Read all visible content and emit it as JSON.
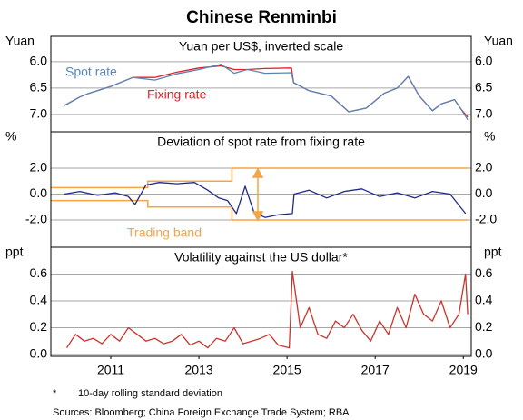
{
  "title": "Chinese Renminbi",
  "footnote_mark": "*",
  "footnote": "10-day rolling standard deviation",
  "source": "Sources: Bloomberg; China Foreign Exchange Trade System; RBA",
  "chart_data": [
    {
      "type": "line",
      "title": "Yuan per US$, inverted scale",
      "y_label": "Yuan",
      "inverted": true,
      "grid": true,
      "xlim": [
        2010.14,
        2019.68
      ],
      "ylim": [
        5.52,
        7.33
      ],
      "yticks": [
        {
          "value": 6.0,
          "label": "6.0"
        },
        {
          "value": 6.5,
          "label": "6.5"
        },
        {
          "value": 7.0,
          "label": "7.0"
        }
      ],
      "x": [
        2010.45,
        2010.8,
        2011.0,
        2011.5,
        2012.0,
        2012.5,
        2013.0,
        2013.5,
        2014.0,
        2014.3,
        2014.6,
        2015.0,
        2015.6,
        2015.65,
        2016.0,
        2016.5,
        2016.9,
        2017.3,
        2017.7,
        2018.0,
        2018.25,
        2018.5,
        2018.8,
        2019.0,
        2019.3,
        2019.45,
        2019.6
      ],
      "series": [
        {
          "name": "Fixing rate",
          "color": "#e32028",
          "values": [
            6.83,
            6.67,
            6.6,
            6.47,
            6.3,
            6.3,
            6.2,
            6.12,
            6.08,
            6.15,
            6.15,
            6.13,
            6.12,
            6.4,
            6.55,
            6.65,
            6.95,
            6.88,
            6.6,
            6.5,
            6.28,
            6.65,
            6.93,
            6.8,
            6.72,
            6.9,
            7.05
          ]
        },
        {
          "name": "Spot rate",
          "color": "#5687b8",
          "values": [
            6.83,
            6.67,
            6.6,
            6.47,
            6.3,
            6.35,
            6.23,
            6.15,
            6.05,
            6.22,
            6.15,
            6.22,
            6.21,
            6.4,
            6.55,
            6.65,
            6.95,
            6.88,
            6.6,
            6.5,
            6.28,
            6.65,
            6.93,
            6.8,
            6.72,
            6.9,
            7.1
          ]
        }
      ]
    },
    {
      "type": "line",
      "title": "Deviation of spot rate from fixing rate",
      "y_label": "%",
      "grid": true,
      "xlim": [
        2010.14,
        2019.68
      ],
      "ylim": [
        -4.1,
        4.8
      ],
      "yticks": [
        {
          "value": 2.0,
          "label": "2.0"
        },
        {
          "value": 0.0,
          "label": "0.0"
        },
        {
          "value": -2.0,
          "label": "-2.0"
        }
      ],
      "x": [
        2010.45,
        2010.8,
        2011.2,
        2011.6,
        2011.9,
        2012.05,
        2012.3,
        2012.6,
        2013.0,
        2013.4,
        2013.7,
        2013.95,
        2014.15,
        2014.35,
        2014.55,
        2014.75,
        2015.0,
        2015.3,
        2015.62,
        2015.66,
        2016.0,
        2016.4,
        2016.8,
        2017.2,
        2017.6,
        2018.0,
        2018.4,
        2018.8,
        2019.2,
        2019.55
      ],
      "series": [
        {
          "name": "Deviation",
          "color": "#1f2a8a",
          "values": [
            0.0,
            0.2,
            -0.1,
            0.1,
            -0.2,
            -0.8,
            0.7,
            0.9,
            0.8,
            0.9,
            0.3,
            -0.3,
            -0.5,
            -1.5,
            0.6,
            -1.4,
            -1.8,
            -1.6,
            -1.5,
            0.0,
            0.3,
            -0.3,
            0.2,
            0.4,
            -0.2,
            0.1,
            -0.3,
            0.2,
            0.0,
            -1.5
          ]
        }
      ],
      "band": {
        "name": "Trading band",
        "color": "#f7a444",
        "x": [
          2010.14,
          2012.34,
          2012.34,
          2014.25,
          2014.25,
          2019.6
        ],
        "upper": [
          0.5,
          0.5,
          1,
          1,
          2,
          2
        ],
        "lower": [
          -0.5,
          -0.5,
          -1,
          -1,
          -2,
          -2
        ]
      }
    },
    {
      "type": "line",
      "title": "Volatility against the US dollar*",
      "y_label": "ppt",
      "grid": true,
      "xlim": [
        2010.14,
        2019.68
      ],
      "ylim": [
        -0.014,
        0.8
      ],
      "yticks": [
        {
          "value": 0.6,
          "label": "0.6"
        },
        {
          "value": 0.4,
          "label": "0.4"
        },
        {
          "value": 0.2,
          "label": "0.2"
        },
        {
          "value": 0.0,
          "label": "0.0"
        }
      ],
      "xticks": [
        {
          "value": 2011.5,
          "label": "2011"
        },
        {
          "value": 2013.5,
          "label": "2013"
        },
        {
          "value": 2015.5,
          "label": "2015"
        },
        {
          "value": 2017.5,
          "label": "2017"
        },
        {
          "value": 2019.5,
          "label": "2019"
        }
      ],
      "x": [
        2010.5,
        2010.7,
        2010.9,
        2011.1,
        2011.3,
        2011.5,
        2011.7,
        2011.9,
        2012.1,
        2012.3,
        2012.5,
        2012.7,
        2012.9,
        2013.1,
        2013.3,
        2013.5,
        2013.7,
        2013.9,
        2014.1,
        2014.3,
        2014.5,
        2014.7,
        2014.9,
        2015.1,
        2015.3,
        2015.55,
        2015.62,
        2015.8,
        2016.0,
        2016.2,
        2016.4,
        2016.6,
        2016.8,
        2017.0,
        2017.2,
        2017.4,
        2017.6,
        2017.8,
        2018.0,
        2018.2,
        2018.4,
        2018.6,
        2018.8,
        2019.0,
        2019.2,
        2019.4,
        2019.55,
        2019.6
      ],
      "series": [
        {
          "name": "Volatility",
          "color": "#c8352c",
          "values": [
            0.05,
            0.15,
            0.1,
            0.12,
            0.08,
            0.15,
            0.1,
            0.2,
            0.15,
            0.1,
            0.12,
            0.08,
            0.1,
            0.15,
            0.07,
            0.1,
            0.05,
            0.12,
            0.1,
            0.2,
            0.08,
            0.1,
            0.12,
            0.15,
            0.07,
            0.05,
            0.62,
            0.2,
            0.35,
            0.15,
            0.12,
            0.25,
            0.2,
            0.3,
            0.18,
            0.1,
            0.25,
            0.15,
            0.35,
            0.2,
            0.45,
            0.3,
            0.25,
            0.4,
            0.2,
            0.3,
            0.6,
            0.3
          ]
        }
      ]
    }
  ]
}
